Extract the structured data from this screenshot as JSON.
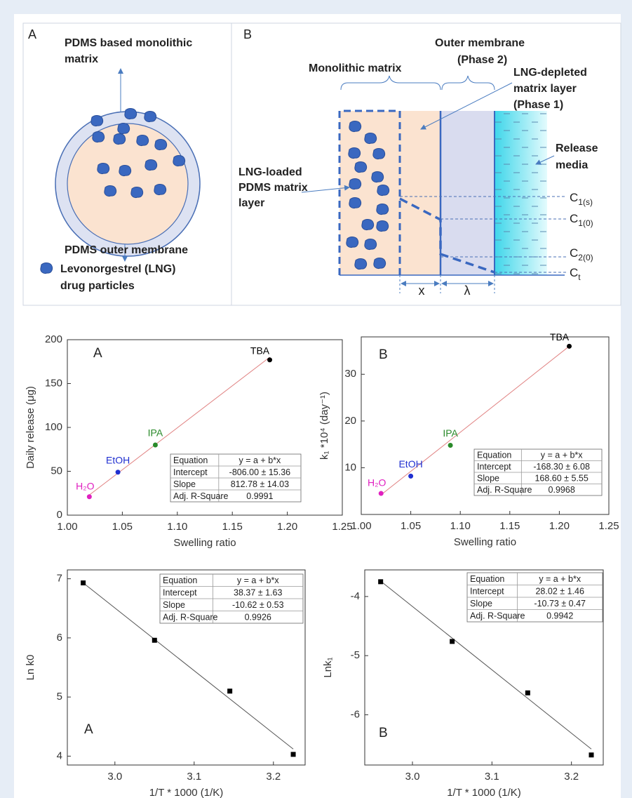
{
  "diagram": {
    "panel_a": {
      "letter": "A",
      "matrix_label": [
        "PDMS based monolithic",
        "matrix"
      ],
      "membrane_label": "PDMS outer membrane",
      "legend": [
        "Levonorgestrel (LNG)",
        "drug particles"
      ]
    },
    "panel_b": {
      "letter": "B",
      "outer_membrane": [
        "Outer membrane",
        "(Phase 2)"
      ],
      "monolithic": "Monolithic matrix",
      "depleted": [
        "LNG-depleted",
        "matrix layer",
        "(Phase 1)"
      ],
      "release": [
        "Release",
        "media"
      ],
      "loaded": [
        "LNG-loaded",
        "PDMS matrix",
        "layer"
      ],
      "concentrations": [
        {
          "main": "C",
          "sub": "1(s)"
        },
        {
          "main": "C",
          "sub": "1(0)"
        },
        {
          "main": "C",
          "sub": "2(0)"
        },
        {
          "main": "C",
          "sub": "t"
        }
      ],
      "x_label": "x",
      "lambda_label": "λ"
    }
  },
  "chart_data": [
    {
      "type": "scatter",
      "panel_label": "A",
      "xlabel": "Swelling ratio",
      "ylabel": "Daily release (μg)",
      "xlim": [
        1,
        1.25
      ],
      "xticks": [
        {
          "value": 1,
          "label": "1.00"
        },
        {
          "value": 1.05,
          "label": "1.05"
        },
        {
          "value": 1.1,
          "label": "1.10"
        },
        {
          "value": 1.15,
          "label": "1.15"
        },
        {
          "value": 1.2,
          "label": "1.20"
        },
        {
          "value": 1.25,
          "label": "1.25"
        }
      ],
      "ylim": [
        0,
        200
      ],
      "yticks": [
        0,
        50,
        100,
        150,
        200
      ],
      "labels": [
        "H₂O",
        "EtOH",
        "IPA",
        "TBA"
      ],
      "x": [
        1.02,
        1.046,
        1.08,
        1.184
      ],
      "values": [
        21,
        49,
        80,
        177
      ],
      "colors": [
        "#e020c0",
        "#2030d0",
        "#2a8a2a",
        "#000000"
      ],
      "marker": "circle",
      "fit": {
        "x": [
          1.02,
          1.184
        ],
        "values": [
          23,
          180
        ],
        "color": "#e08080"
      },
      "table": [
        [
          "Equation",
          "y = a + b*x"
        ],
        [
          "Intercept",
          "-806.00 ± 15.36"
        ],
        [
          "Slope",
          "812.78 ± 14.03"
        ],
        [
          "Adj. R-Square",
          "0.9991"
        ]
      ]
    },
    {
      "type": "scatter",
      "panel_label": "B",
      "xlabel": "Swelling ratio",
      "ylabel": "k₁ *10⁴ (day⁻¹)",
      "xlim": [
        1,
        1.25
      ],
      "xticks": [
        {
          "value": 1,
          "label": "1.00"
        },
        {
          "value": 1.05,
          "label": "1.05"
        },
        {
          "value": 1.1,
          "label": "1.10"
        },
        {
          "value": 1.15,
          "label": "1.15"
        },
        {
          "value": 1.2,
          "label": "1.20"
        },
        {
          "value": 1.25,
          "label": "1.25"
        }
      ],
      "ylim": [
        0,
        38
      ],
      "yticks": [
        10,
        20,
        30
      ],
      "labels": [
        "H₂O",
        "EtOH",
        "IPA",
        "TBA"
      ],
      "x": [
        1.02,
        1.05,
        1.09,
        1.21
      ],
      "values": [
        4.5,
        8.2,
        14.8,
        36
      ],
      "colors": [
        "#e020c0",
        "#2030d0",
        "#2a8a2a",
        "#000000"
      ],
      "marker": "circle",
      "fit": {
        "x": [
          1.02,
          1.21
        ],
        "values": [
          4.2,
          36
        ],
        "color": "#e08080"
      },
      "table": [
        [
          "Equation",
          "y = a + b*x"
        ],
        [
          "Intercept",
          "-168.30 ± 6.08"
        ],
        [
          "Slope",
          "168.60 ± 5.55"
        ],
        [
          "Adj. R-Square",
          "0.9968"
        ]
      ]
    },
    {
      "type": "scatter",
      "panel_label": "A",
      "xlabel": "1/T * 1000 (1/K)",
      "ylabel": "Ln k0",
      "xlim": [
        2.94,
        3.24
      ],
      "xticks": [
        {
          "value": 3,
          "label": "3.0"
        },
        {
          "value": 3.1,
          "label": "3.1"
        },
        {
          "value": 3.2,
          "label": "3.2"
        }
      ],
      "ylim": [
        3.85,
        7.15
      ],
      "yticks": [
        4,
        5,
        6,
        7
      ],
      "x": [
        2.96,
        3.05,
        3.145,
        3.225
      ],
      "values": [
        6.93,
        5.96,
        5.1,
        4.03
      ],
      "color": "#000000",
      "marker": "square",
      "fit": {
        "x": [
          2.96,
          3.225
        ],
        "values": [
          6.93,
          4.12
        ],
        "color": "#555555"
      },
      "table": [
        [
          "Equation",
          "y = a + b*x"
        ],
        [
          "Intercept",
          "38.37 ± 1.63"
        ],
        [
          "Slope",
          "-10.62 ± 0.53"
        ],
        [
          "Adj. R-Square",
          "0.9926"
        ]
      ]
    },
    {
      "type": "scatter",
      "panel_label": "B",
      "xlabel": "1/T * 1000 (1/K)",
      "ylabel": "Lnk₁",
      "xlim": [
        2.94,
        3.24
      ],
      "xticks": [
        {
          "value": 3,
          "label": "3.0"
        },
        {
          "value": 3.1,
          "label": "3.1"
        },
        {
          "value": 3.2,
          "label": "3.2"
        }
      ],
      "ylim": [
        -6.85,
        -3.55
      ],
      "yticks": [
        -6,
        -5,
        -4
      ],
      "x": [
        2.96,
        3.05,
        3.145,
        3.225
      ],
      "values": [
        -3.75,
        -4.76,
        -5.63,
        -6.68
      ],
      "color": "#000000",
      "marker": "square",
      "fit": {
        "x": [
          2.96,
          3.225
        ],
        "values": [
          -3.74,
          -6.58
        ],
        "color": "#555555"
      },
      "table": [
        [
          "Equation",
          "y = a + b*x"
        ],
        [
          "Intercept",
          "28.02 ± 1.46"
        ],
        [
          "Slope",
          "-10.73 ± 0.47"
        ],
        [
          "Adj. R-Square",
          "0.9942"
        ]
      ]
    }
  ]
}
